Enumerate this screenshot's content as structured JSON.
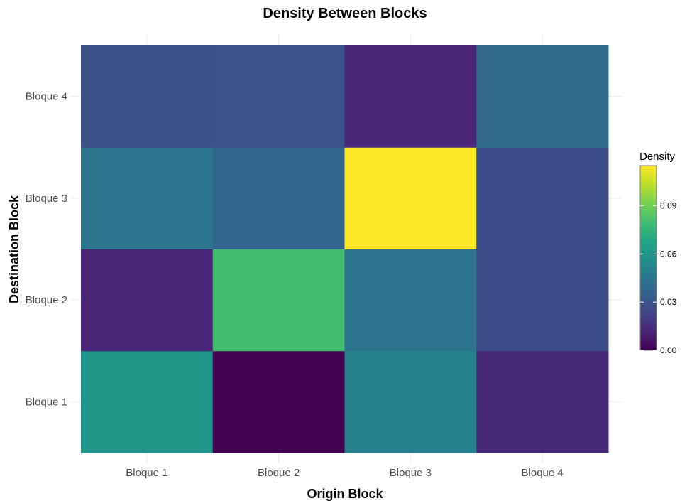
{
  "chart_data": {
    "type": "heatmap",
    "title": "Density Between Blocks",
    "xlabel": "Origin Block",
    "ylabel": "Destination Block",
    "x_categories": [
      "Bloque 1",
      "Bloque 2",
      "Bloque 3",
      "Bloque 4"
    ],
    "y_categories": [
      "Bloque 1",
      "Bloque 2",
      "Bloque 3",
      "Bloque 4"
    ],
    "values": [
      [
        0.06,
        0.0,
        0.05,
        0.013
      ],
      [
        0.012,
        0.08,
        0.044,
        0.027
      ],
      [
        0.045,
        0.038,
        0.115,
        0.027
      ],
      [
        0.028,
        0.03,
        0.012,
        0.04
      ]
    ],
    "value_layout": "values[row][col], row = y category (Destination Block), col = x category (Origin Block)",
    "legend": {
      "title": "Density",
      "position": "right",
      "range": [
        0,
        0.115
      ],
      "ticks": [
        0.0,
        0.03,
        0.06,
        0.09
      ],
      "tick_labels": [
        "0.00",
        "0.03",
        "0.06",
        "0.09"
      ],
      "colormap": "viridis"
    },
    "grid": true
  }
}
